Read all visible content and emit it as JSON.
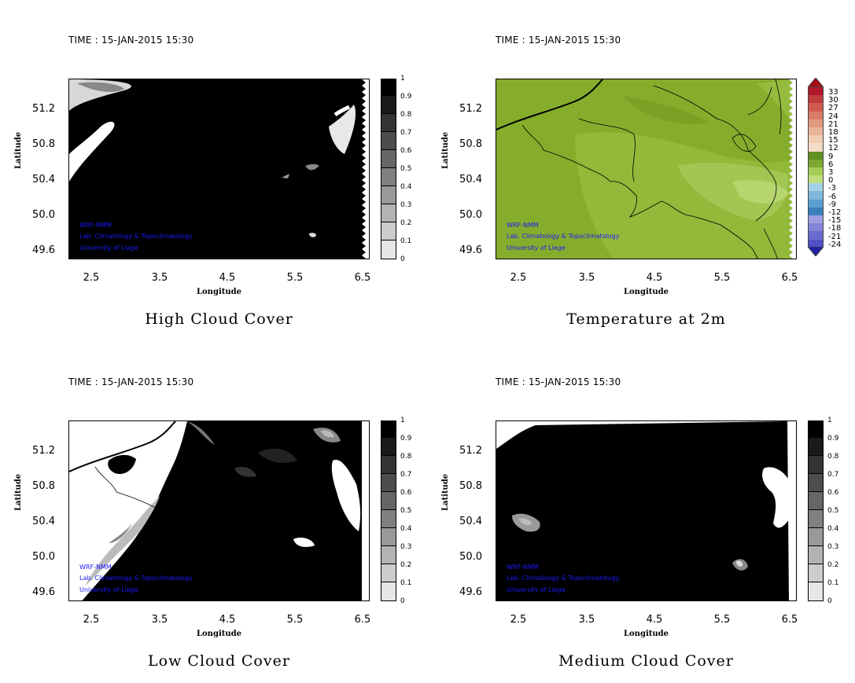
{
  "panels": [
    {
      "id": "high",
      "time": "TIME : 15-JAN-2015 15:30",
      "title": "High Cloud Cover",
      "xlabel": "Longitude",
      "ylabel": "Latitude",
      "xticks": [
        "2.5",
        "3.5",
        "4.5",
        "5.5",
        "6.5"
      ],
      "yticks": [
        "51.2",
        "50.8",
        "50.4",
        "50.0",
        "49.6"
      ],
      "credits": [
        "WRF-NMM",
        "Lab. Climatology & Topoclimatology",
        "University of Liege"
      ],
      "colorbar": [
        "1",
        "0.9",
        "0.8",
        "0.7",
        "0.6",
        "0.5",
        "0.4",
        "0.3",
        "0.2",
        "0.1",
        "0"
      ]
    },
    {
      "id": "temp",
      "time": "TIME : 15-JAN-2015 15:30",
      "title": "Temperature at 2m",
      "xlabel": "Longitude",
      "ylabel": "Latitude",
      "xticks": [
        "2.5",
        "3.5",
        "4.5",
        "5.5",
        "6.5"
      ],
      "yticks": [
        "51.2",
        "50.8",
        "50.4",
        "50.0",
        "49.6"
      ],
      "credits": [
        "WRF-NMM",
        "Lab. Climatology & Topoclimatology",
        "University of Liege"
      ],
      "colorbar": [
        "33",
        "30",
        "27",
        "24",
        "21",
        "18",
        "15",
        "12",
        "9",
        "6",
        "3",
        "0",
        "-3",
        "-6",
        "-9",
        "-12",
        "-15",
        "-18",
        "-21",
        "-24"
      ]
    },
    {
      "id": "low",
      "time": "TIME : 15-JAN-2015 15:30",
      "title": "Low Cloud Cover",
      "xlabel": "Longitude",
      "ylabel": "Latitude",
      "xticks": [
        "2.5",
        "3.5",
        "4.5",
        "5.5",
        "6.5"
      ],
      "yticks": [
        "51.2",
        "50.8",
        "50.4",
        "50.0",
        "49.6"
      ],
      "credits": [
        "WRF-NMM",
        "Lab. Climatology & Topoclimatology",
        "University of Liege"
      ],
      "colorbar": [
        "1",
        "0.9",
        "0.8",
        "0.7",
        "0.6",
        "0.5",
        "0.4",
        "0.3",
        "0.2",
        "0.1",
        "0"
      ]
    },
    {
      "id": "medium",
      "time": "TIME : 15-JAN-2015 15:30",
      "title": "Medium Cloud Cover",
      "xlabel": "Longitude",
      "ylabel": "Latitude",
      "xticks": [
        "2.5",
        "3.5",
        "4.5",
        "5.5",
        "6.5"
      ],
      "yticks": [
        "51.2",
        "50.8",
        "50.4",
        "50.0",
        "49.6"
      ],
      "credits": [
        "WRF-NMM",
        "Lab. Climatology & Topoclimatology",
        "University of Liege"
      ],
      "colorbar": [
        "1",
        "0.9",
        "0.8",
        "0.7",
        "0.6",
        "0.5",
        "0.4",
        "0.3",
        "0.2",
        "0.1",
        "0"
      ]
    }
  ],
  "colors": {
    "cloud_scale": [
      "#000000",
      "#1a1a1a",
      "#333333",
      "#4d4d4d",
      "#666666",
      "#808080",
      "#999999",
      "#b3b3b3",
      "#cccccc",
      "#e6e6e6",
      "#ffffff"
    ],
    "temp_scale": [
      "#b2182b",
      "#c13a3e",
      "#cf5b52",
      "#d97b67",
      "#e19a80",
      "#e9b59a",
      "#f0ccb2",
      "#f5dcc8",
      "#7ea832",
      "#8dba3c",
      "#a4cc55",
      "#bedd7c",
      "#a6d0e6",
      "#7fb8da",
      "#5a9fcf",
      "#3b7fbd",
      "#5e5ec9",
      "#7878d6",
      "#6a6ad0",
      "#3030b0"
    ],
    "temp_field": "#86ac2c",
    "credit_text": "#1a1aff"
  }
}
